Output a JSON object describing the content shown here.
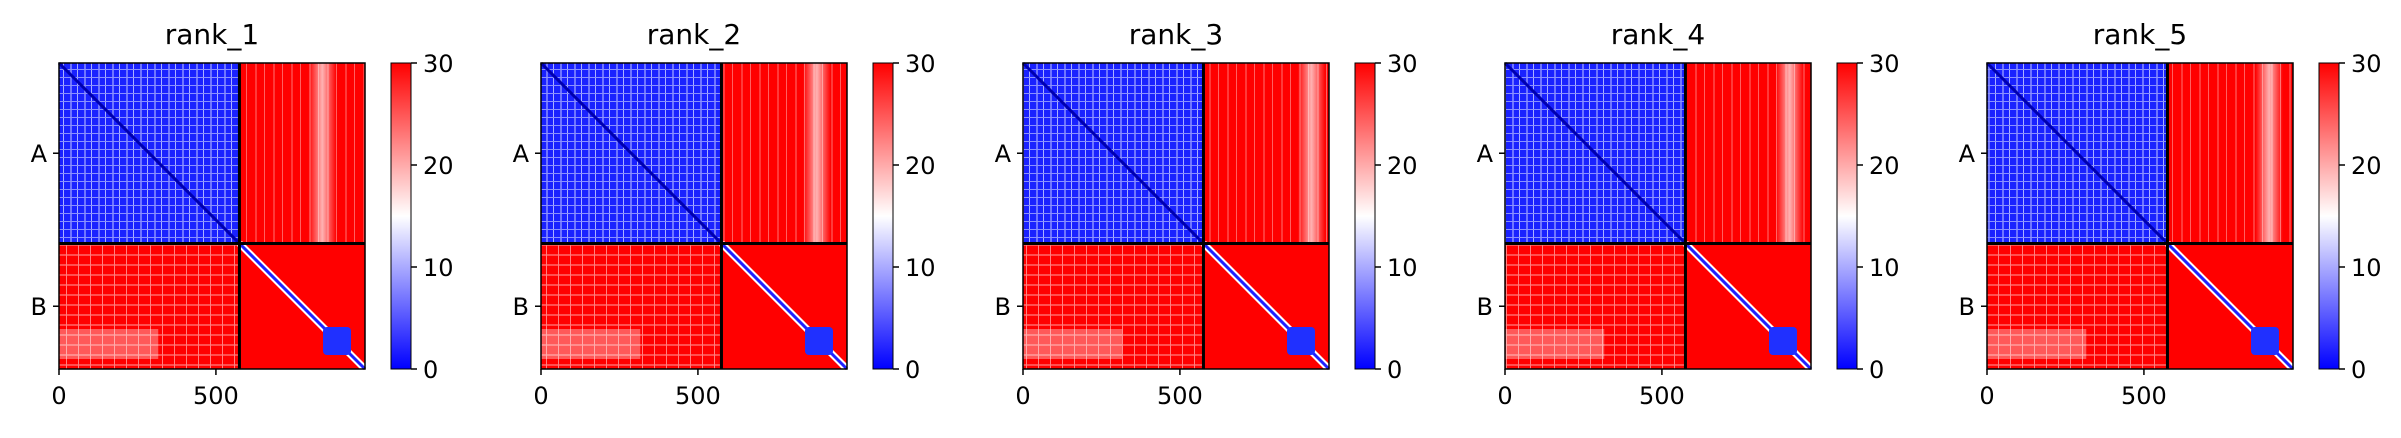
{
  "chart_data": {
    "type": "heatmap",
    "panel_titles": [
      "rank_1",
      "rank_2",
      "rank_3",
      "rank_4",
      "rank_5"
    ],
    "x_ticks": [
      0,
      500
    ],
    "x_range": [
      0,
      975
    ],
    "y_tick_labels": [
      "A",
      "B"
    ],
    "chain_boundary": 575,
    "colorbar": {
      "min": 0,
      "max": 30,
      "ticks": [
        0,
        10,
        20,
        30
      ],
      "colors": {
        "low": "#0000ff",
        "mid": "#ffffff",
        "high": "#ff0000"
      }
    },
    "grid": false
  }
}
